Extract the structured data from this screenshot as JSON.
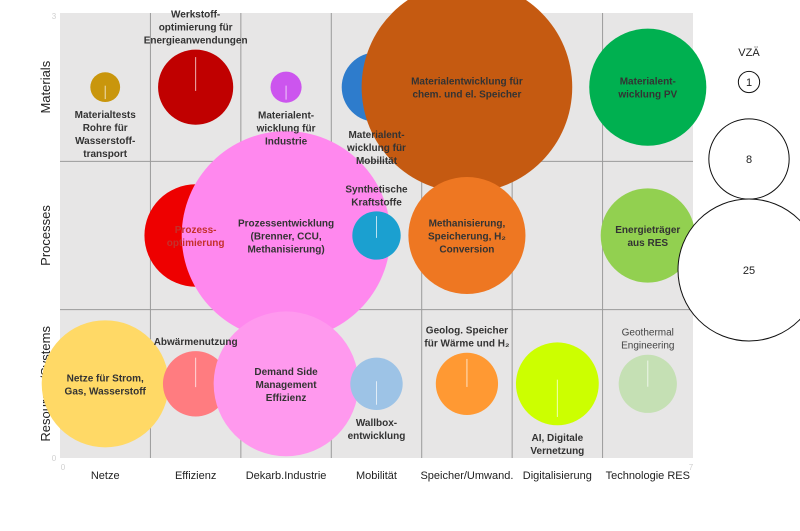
{
  "chart_data": {
    "type": "bubble-matrix",
    "rows": [
      "Materials",
      "Processes",
      "Resources/Systems"
    ],
    "columns": [
      "Netze",
      "Effizienz",
      "Dekarb.Industrie",
      "Mobilität",
      "Speicher/Umwand.",
      "Digitalisierung",
      "Technologie RES"
    ],
    "x_ticks": [
      "0",
      "7"
    ],
    "y_ticks": [
      "0",
      "3"
    ],
    "bubbles": [
      {
        "row": 0,
        "col": 0,
        "size": 1.1,
        "color": "#c9960c",
        "label": [
          "Materialtests",
          "Rohre für",
          "Wasserstoff-",
          "transport"
        ],
        "label_pos": "below",
        "label_color": "#333333"
      },
      {
        "row": 0,
        "col": 1,
        "size": 7,
        "color": "#c00000",
        "label": [
          "Werkstoff-",
          "optimierung für",
          "Energieanwendungen"
        ],
        "label_pos": "above",
        "label_color": "#333333"
      },
      {
        "row": 0,
        "col": 2,
        "size": 1.2,
        "color": "#cc55ee",
        "label": [
          "Materialent-",
          "wicklung für",
          "Industrie"
        ],
        "label_pos": "below",
        "label_color": "#333333"
      },
      {
        "row": 0,
        "col": 3,
        "size": 6,
        "color": "#2e7ccc",
        "label": [
          "Materialent-",
          "wicklung für",
          "Mobilität"
        ],
        "label_pos": "below",
        "label_color": "#333333"
      },
      {
        "row": 0,
        "col": 4,
        "size": 55,
        "color": "#c55a11",
        "label": [
          "Materialentwicklung für",
          "chem. und el. Speicher"
        ],
        "label_pos": "center",
        "label_color": "#333333"
      },
      {
        "row": 0,
        "col": 6,
        "size": 17,
        "color": "#00b050",
        "label": [
          "Materialent-",
          "wicklung PV"
        ],
        "label_pos": "center",
        "label_color": "#333333"
      },
      {
        "row": 1,
        "col": 1,
        "size": 13,
        "color": "#ee0000",
        "label": [
          "Prozess-",
          "optimierung"
        ],
        "label_pos": "center",
        "label_color": "#c4302b"
      },
      {
        "row": 1,
        "col": 2,
        "size": 54,
        "color": "#ff88ee",
        "label": [
          "Prozessentwicklung",
          "(Brenner, CCU,",
          "Methanisierung)"
        ],
        "label_pos": "center",
        "label_color": "#333333"
      },
      {
        "row": 1,
        "col": 3,
        "size": 2.9,
        "color": "#1ba0d0",
        "label": [
          "Synthetische",
          "Kraftstoffe"
        ],
        "label_pos": "above",
        "label_color": "#333333"
      },
      {
        "row": 1,
        "col": 4,
        "size": 17,
        "color": "#ee7722",
        "label": [
          "Methanisierung,",
          "Speicherung, H₂",
          "Conversion"
        ],
        "label_pos": "center",
        "label_color": "#333333"
      },
      {
        "row": 1,
        "col": 6,
        "size": 11,
        "color": "#92d050",
        "label": [
          "Energieträger",
          "aus RES"
        ],
        "label_pos": "center",
        "label_color": "#333333"
      },
      {
        "row": 2,
        "col": 0,
        "size": 20,
        "color": "#ffd966",
        "label": [
          "Netze für Strom,",
          "Gas, Wasserstoff"
        ],
        "label_pos": "center",
        "label_color": "#333333"
      },
      {
        "row": 2,
        "col": 1,
        "size": 5.3,
        "color": "#ff7c80",
        "label": [
          "Abwärmenutzung"
        ],
        "label_pos": "above",
        "label_color": "#333333"
      },
      {
        "row": 2,
        "col": 2,
        "size": 26,
        "color": "#ff99ee",
        "label": [
          "Demand Side",
          "Management",
          "Effizienz"
        ],
        "label_pos": "center",
        "label_color": "#333333"
      },
      {
        "row": 2,
        "col": 3,
        "size": 3.4,
        "color": "#9dc3e6",
        "label": [
          "Wallbox-",
          "entwicklung"
        ],
        "label_pos": "below",
        "label_color": "#333333"
      },
      {
        "row": 2,
        "col": 4,
        "size": 4.8,
        "color": "#ff9933",
        "label": [
          "Geolog. Speicher",
          "für Wärme und H₂"
        ],
        "label_pos": "above",
        "label_color": "#333333"
      },
      {
        "row": 2,
        "col": 5,
        "size": 8.5,
        "color": "#ccff00",
        "label": [
          "AI, Digitale",
          "Vernetzung"
        ],
        "label_pos": "below",
        "label_color": "#333333"
      },
      {
        "row": 2,
        "col": 6,
        "size": 4.2,
        "color": "#c5e0b4",
        "label": [
          "Geothermal",
          "Engineering"
        ],
        "label_pos": "above",
        "label_color": "#444444",
        "label_bold": false
      }
    ],
    "legend": {
      "title": "VZÄ",
      "entries": [
        {
          "label": "1",
          "size": 1
        },
        {
          "label": "8",
          "size": 8
        },
        {
          "label": "25",
          "size": 25
        }
      ]
    },
    "grid": true
  }
}
